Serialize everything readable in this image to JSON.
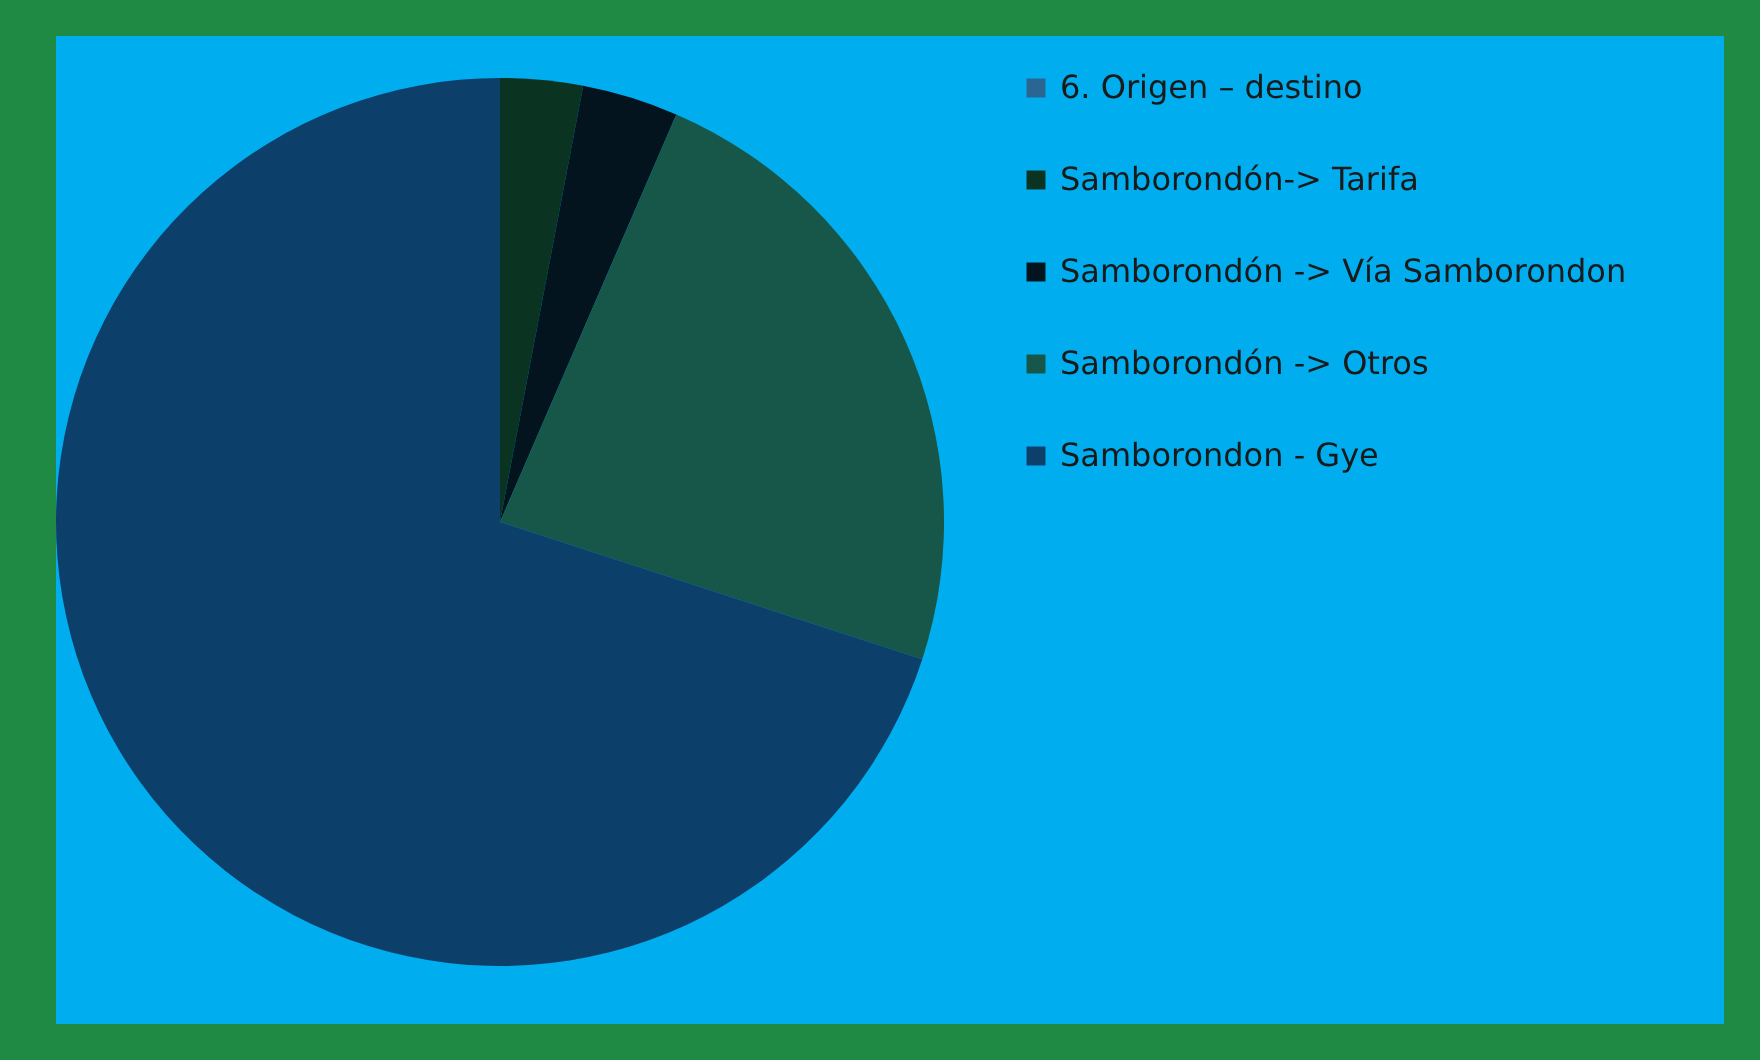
{
  "chart_data": {
    "type": "pie",
    "categories": [
      "6. Origen – destino",
      "Samborondón-> Tarifa",
      "Samborondón -> Vía Samborondon",
      "Samborondón -> Otros",
      "Samborondon - Gye"
    ],
    "values": [
      0,
      3,
      3.5,
      23.5,
      70
    ],
    "colors": [
      "#2b6592",
      "#0b3322",
      "#04141f",
      "#17574a",
      "#0d3f6b"
    ],
    "legend": "right"
  }
}
